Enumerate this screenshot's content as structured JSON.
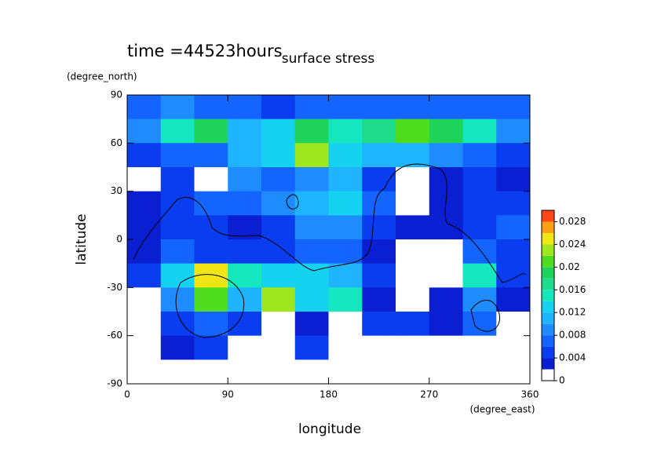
{
  "chart_data": {
    "type": "contourf",
    "title": "surface stress",
    "subtitle": "time =44523hours",
    "xlabel": "longitude",
    "ylabel": "latitude",
    "xunits": "(degree_east)",
    "yunits": "(degree_north)",
    "xlim": [
      0,
      360
    ],
    "ylim": [
      -90,
      90
    ],
    "xticks": [
      0,
      90,
      180,
      270,
      360
    ],
    "yticks": [
      90,
      60,
      30,
      0,
      -30,
      -60,
      -90
    ],
    "clim": [
      0,
      0.03
    ],
    "cticks": [
      0,
      0.004,
      0.008,
      0.012,
      0.016,
      0.02,
      0.024,
      0.028
    ],
    "colors": [
      "#ffffff",
      "#0a1ed2",
      "#0a3cf0",
      "#1464ff",
      "#1e8cff",
      "#1eb4ff",
      "#14d2f0",
      "#14e6be",
      "#1edc8c",
      "#1ed25a",
      "#50dc1e",
      "#a0e61e",
      "#f0e614",
      "#ffa014",
      "#ff4614"
    ],
    "x": [
      15,
      45,
      75,
      105,
      135,
      165,
      195,
      225,
      255,
      285,
      315,
      345
    ],
    "y": [
      82.5,
      67.5,
      52.5,
      37.5,
      22.5,
      7.5,
      -7.5,
      -22.5,
      -37.5,
      -52.5,
      -67.5,
      -82.5
    ],
    "z": [
      [
        0.006,
        0.008,
        0.006,
        0.006,
        0.005,
        0.006,
        0.006,
        0.006,
        0.006,
        0.006,
        0.006,
        0.006
      ],
      [
        0.008,
        0.014,
        0.018,
        0.01,
        0.012,
        0.018,
        0.014,
        0.016,
        0.02,
        0.018,
        0.014,
        0.008
      ],
      [
        0.004,
        0.006,
        0.006,
        0.01,
        0.012,
        0.022,
        0.012,
        0.01,
        0.01,
        0.008,
        0.006,
        0.004
      ],
      [
        0.001,
        0.004,
        0.001,
        0.008,
        0.006,
        0.008,
        0.01,
        0.004,
        0.001,
        0.003,
        0.004,
        0.003
      ],
      [
        0.003,
        0.004,
        0.006,
        0.006,
        0.008,
        0.01,
        0.012,
        0.006,
        0.001,
        0.003,
        0.004,
        0.005
      ],
      [
        0.003,
        0.004,
        0.004,
        0.003,
        0.004,
        0.008,
        0.008,
        0.004,
        0.003,
        0.002,
        0.004,
        0.006
      ],
      [
        0.002,
        0.006,
        0.004,
        0.004,
        0.004,
        0.006,
        0.006,
        0.003,
        0.001,
        0.001,
        0.006,
        0.004
      ],
      [
        0.004,
        0.012,
        0.024,
        0.014,
        0.012,
        0.012,
        0.01,
        0.004,
        0.001,
        0.001,
        0.014,
        0.004
      ],
      [
        0.001,
        0.008,
        0.02,
        0.01,
        0.022,
        0.012,
        0.014,
        0.003,
        0.001,
        0.002,
        0.008,
        0.003
      ],
      [
        0.001,
        0.004,
        0.006,
        0.004,
        0.001,
        0.002,
        0.001,
        0.004,
        0.004,
        0.003,
        0.006,
        0.001
      ],
      [
        0.001,
        0.003,
        0.004,
        0.001,
        0.001,
        0.004,
        0.001,
        0.001,
        0.001,
        0.001,
        0.001,
        0.001
      ],
      [
        0,
        0,
        0,
        0,
        0,
        0,
        0,
        0,
        0,
        0,
        0,
        0
      ]
    ]
  }
}
